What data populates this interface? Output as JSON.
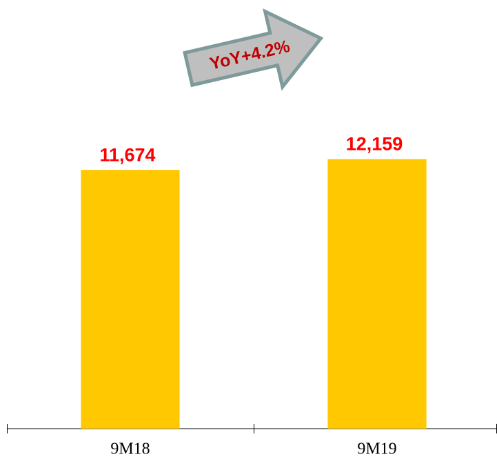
{
  "chart_data": {
    "type": "bar",
    "categories": [
      "9M18",
      "9M19"
    ],
    "values": [
      11674,
      12159
    ],
    "value_labels": [
      "11,674",
      "12,159"
    ],
    "color": "#ffc800",
    "ylim": [
      0,
      18000
    ],
    "annotation": "YoY+4.2%"
  }
}
